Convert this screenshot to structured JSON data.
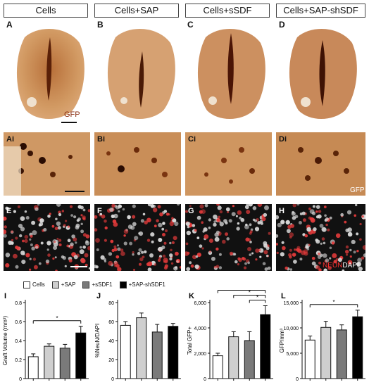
{
  "headers": [
    "Cells",
    "Cells+SAP",
    "Cells+sSDF",
    "Cells+SAP-shSDF"
  ],
  "row_a_letters": [
    "A",
    "B",
    "C",
    "D"
  ],
  "row_b_letters": [
    "Ai",
    "Bi",
    "Ci",
    "Di"
  ],
  "row_c_letters": [
    "E",
    "F",
    "G",
    "H"
  ],
  "gfp_label": "GFP",
  "gfp_label_small": "GFP",
  "neun_label": "NEUN",
  "dapi_label": "DAPI",
  "legend": [
    {
      "label": "Cells",
      "color": "#ffffff"
    },
    {
      "label": "+SAP",
      "color": "#cfcfcf"
    },
    {
      "label": "+sSDF1",
      "color": "#7a7a7a"
    },
    {
      "label": "+SAP-shSDF1",
      "color": "#000000"
    }
  ],
  "chart_data": [
    {
      "type": "bar",
      "panel": "I",
      "ylabel": "Graft Volume (mm³)",
      "ylim": [
        0,
        0.8
      ],
      "ticks": [
        "0",
        "0.2",
        "0.4",
        "0.6",
        "0.8"
      ],
      "tick_values": [
        0,
        0.2,
        0.4,
        0.6,
        0.8
      ],
      "values": [
        0.23,
        0.34,
        0.32,
        0.48
      ],
      "errors": [
        0.03,
        0.025,
        0.04,
        0.07
      ],
      "significance": [
        {
          "from": 0,
          "to": 3,
          "label": "*"
        }
      ]
    },
    {
      "type": "bar",
      "panel": "J",
      "ylabel": "%NeuN/DAPI",
      "ylim": [
        0,
        80
      ],
      "ticks": [
        "0",
        "20",
        "40",
        "60",
        "80"
      ],
      "tick_values": [
        0,
        20,
        40,
        60,
        80
      ],
      "values": [
        56,
        64,
        49,
        55
      ],
      "errors": [
        4,
        5,
        8,
        3
      ],
      "significance": []
    },
    {
      "type": "bar",
      "panel": "K",
      "ylabel": "Total GFP+",
      "ylim": [
        0,
        6000
      ],
      "ticks": [
        "0",
        "2,000",
        "4,000",
        "6,000"
      ],
      "tick_values": [
        0,
        2000,
        4000,
        6000
      ],
      "values": [
        1800,
        3300,
        3000,
        5050
      ],
      "errors": [
        200,
        400,
        700,
        700
      ],
      "significance": [
        {
          "from": 0,
          "to": 3,
          "label": "*"
        },
        {
          "from": 1,
          "to": 3,
          "label": "*"
        },
        {
          "from": 2,
          "to": 3,
          "label": "*"
        }
      ]
    },
    {
      "type": "bar",
      "panel": "L",
      "ylabel": "GFP/mm³",
      "ylim": [
        0,
        15000
      ],
      "ticks": [
        "0",
        "5,000",
        "10,000",
        "15,000"
      ],
      "tick_values": [
        0,
        5000,
        10000,
        15000
      ],
      "values": [
        7600,
        10100,
        9600,
        12200
      ],
      "errors": [
        800,
        1200,
        1000,
        1300
      ],
      "significance": [
        {
          "from": 0,
          "to": 3,
          "label": "*"
        }
      ]
    }
  ]
}
